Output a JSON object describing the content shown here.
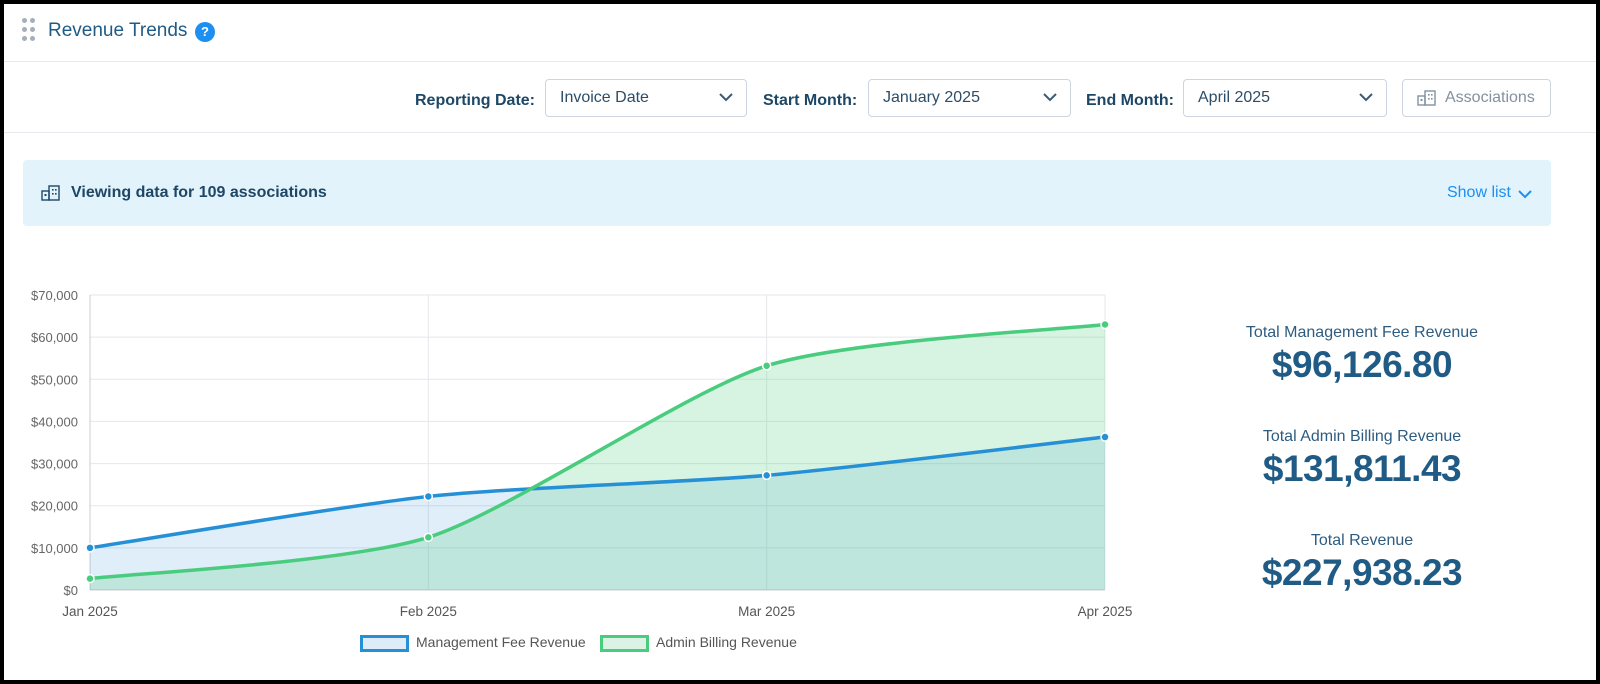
{
  "header": {
    "title": "Revenue Trends",
    "help_icon": "?"
  },
  "filters": {
    "reporting_date_label": "Reporting Date:",
    "reporting_date_value": "Invoice Date",
    "start_month_label": "Start Month:",
    "start_month_value": "January 2025",
    "end_month_label": "End Month:",
    "end_month_value": "April 2025",
    "associations_button": "Associations"
  },
  "banner": {
    "text": "Viewing data for 109 associations",
    "show_list": "Show list"
  },
  "colors": {
    "management": "#2690d6",
    "admin": "#49cc7d",
    "accent": "#1d8ff0",
    "title": "#1f5b85"
  },
  "chart_data": {
    "type": "area",
    "categories": [
      "Jan 2025",
      "Feb 2025",
      "Mar 2025",
      "Apr 2025"
    ],
    "series": [
      {
        "name": "Management Fee Revenue",
        "values": [
          10000,
          22200,
          27200,
          36300
        ]
      },
      {
        "name": "Admin Billing Revenue",
        "values": [
          2700,
          12500,
          53200,
          63000
        ]
      }
    ],
    "y_ticks": [
      "$0",
      "$10,000",
      "$20,000",
      "$30,000",
      "$40,000",
      "$50,000",
      "$60,000",
      "$70,000"
    ],
    "ylim": [
      0,
      70000
    ],
    "grid": true,
    "legend": "bottom"
  },
  "totals": [
    {
      "label": "Total Management Fee Revenue",
      "value": "$96,126.80"
    },
    {
      "label": "Total Admin Billing Revenue",
      "value": "$131,811.43"
    },
    {
      "label": "Total Revenue",
      "value": "$227,938.23"
    }
  ]
}
